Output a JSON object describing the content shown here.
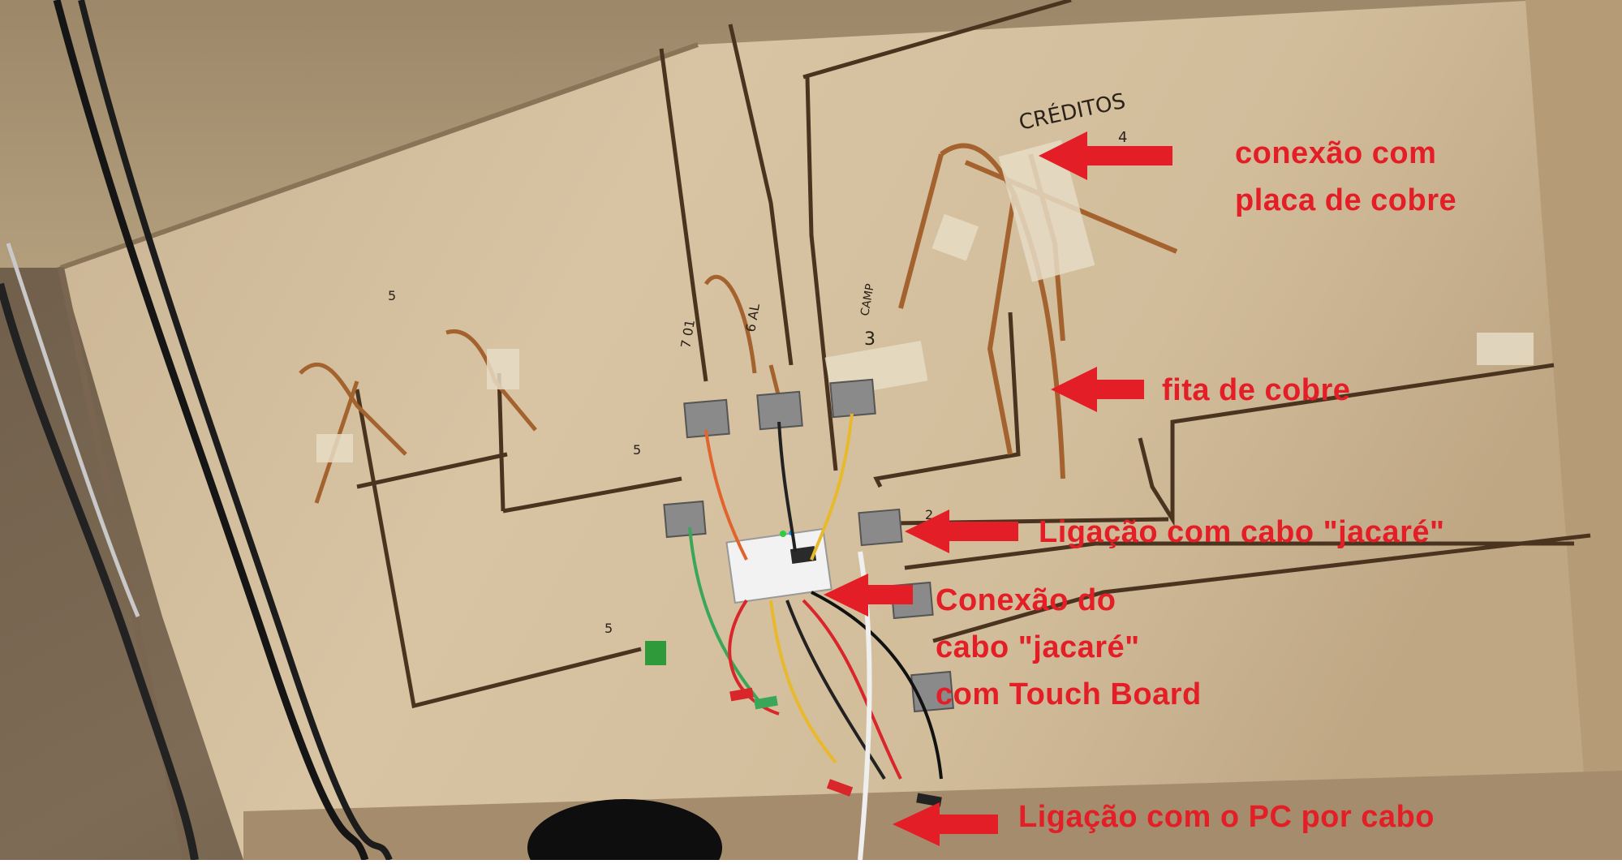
{
  "photo": {
    "description_free": true,
    "handwritten": {
      "creditos": "CRÉDITOS",
      "num_4": "4",
      "num_5_top": "5",
      "num_5_mid": "5",
      "num_5_bottom": "5",
      "num_3": "3",
      "num_2": "2",
      "tag_7": "7 01",
      "tag_6": "6 AL",
      "tag_3": "CAMP"
    }
  },
  "annotations": {
    "color": "#e41e26",
    "conexao_placa": {
      "line1": "conexão com",
      "line2": "placa de cobre"
    },
    "fita": {
      "line1": "fita de cobre"
    },
    "ligacao_jacare": {
      "line1": "Ligação com cabo \"jacaré\""
    },
    "conexao_touch": {
      "line1": "Conexão do",
      "line2": "cabo \"jacaré\"",
      "line3": "com Touch Board"
    },
    "ligacao_pc": {
      "line1": "Ligação com o PC por cabo"
    }
  }
}
